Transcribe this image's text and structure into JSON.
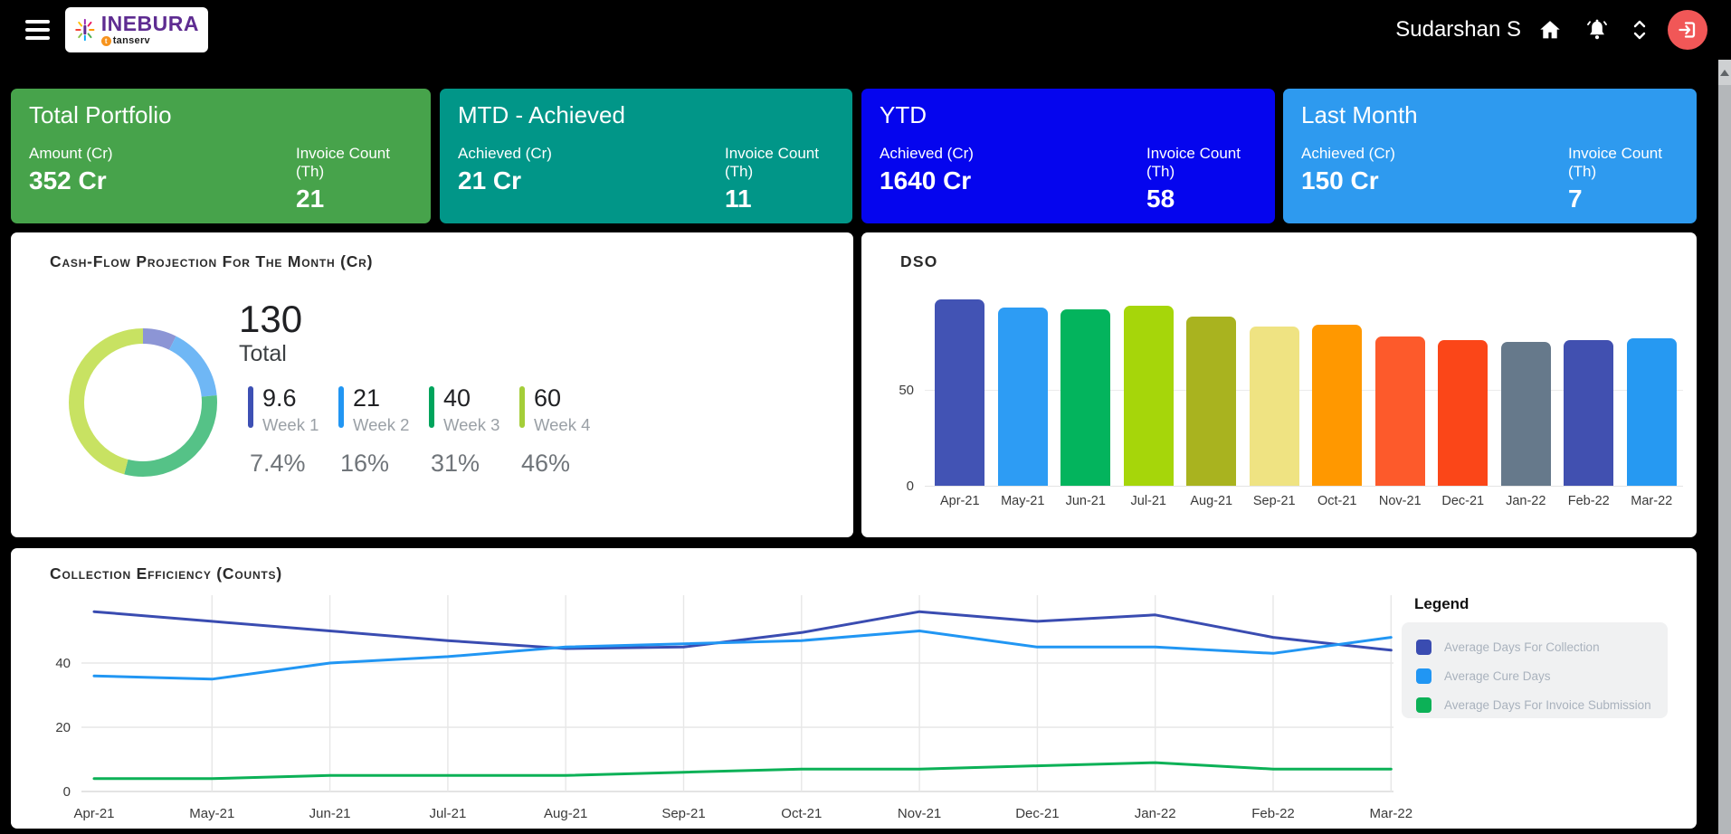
{
  "header": {
    "brand": "INEBURA",
    "brand_sub": "tanserv",
    "user_name": "Sudarshan S"
  },
  "kpi_cards": [
    {
      "title": "Total Portfolio",
      "color": "#47A34B",
      "metrics": [
        {
          "label": "Amount (Cr)",
          "value": "352 Cr"
        },
        {
          "label": "Invoice Count (Th)",
          "value": "21"
        }
      ]
    },
    {
      "title": "MTD - Achieved",
      "color": "#019688",
      "metrics": [
        {
          "label": "Achieved (Cr)",
          "value": "21 Cr"
        },
        {
          "label": "Invoice Count (Th)",
          "value": "11"
        }
      ]
    },
    {
      "title": "YTD",
      "color": "#0505EE",
      "metrics": [
        {
          "label": "Achieved (Cr)",
          "value": "1640 Cr"
        },
        {
          "label": "Invoice Count (Th)",
          "value": "58"
        }
      ]
    },
    {
      "title": "Last Month",
      "color": "#2E9AEF",
      "metrics": [
        {
          "label": "Achieved (Cr)",
          "value": "150 Cr"
        },
        {
          "label": "Invoice Count (Th)",
          "value": "7"
        }
      ]
    }
  ],
  "cashflow": {
    "title": "Cash-Flow Projection For The Month (Cr)",
    "total_value": "130",
    "total_label": "Total",
    "chart_data": {
      "type": "pie",
      "labels": [
        "Week 1",
        "Week 2",
        "Week 3",
        "Week 4"
      ],
      "values": [
        9.6,
        21,
        40,
        60
      ],
      "percentages": [
        "7.4%",
        "16%",
        "31%",
        "46%"
      ],
      "total": 130,
      "arc_colors": [
        "#8C95D5",
        "#6FB7F5",
        "#55C287",
        "#C8E262"
      ],
      "marker_colors": [
        "#3D50B4",
        "#2196F3",
        "#00A45C",
        "#A4CE39"
      ]
    }
  },
  "dso": {
    "title": "DSO",
    "chart_data": {
      "type": "bar",
      "categories": [
        "Apr-21",
        "May-21",
        "Jun-21",
        "Jul-21",
        "Aug-21",
        "Sep-21",
        "Oct-21",
        "Nov-21",
        "Dec-21",
        "Jan-22",
        "Feb-22",
        "Mar-22"
      ],
      "values": [
        97,
        93,
        92,
        94,
        88,
        83,
        84,
        78,
        76,
        75,
        76,
        77
      ],
      "colors": [
        "#4253B4",
        "#2D9CF4",
        "#03B45D",
        "#A6D60A",
        "#A9B31F",
        "#EFE382",
        "#FF9800",
        "#FD5A2B",
        "#FB4618",
        "#66798B",
        "#4150B0",
        "#2699F2"
      ],
      "yticks": [
        0,
        50
      ],
      "ylim": [
        0,
        104
      ],
      "grid": "horizontal"
    }
  },
  "collection": {
    "title": "Collection Efficiency (Counts)",
    "legend_title": "Legend",
    "chart_data": {
      "type": "line",
      "x": [
        "Apr-21",
        "May-21",
        "Jun-21",
        "Jul-21",
        "Aug-21",
        "Sep-21",
        "Oct-21",
        "Nov-21",
        "Dec-21",
        "Jan-22",
        "Feb-22",
        "Mar-22"
      ],
      "yticks": [
        0,
        20,
        40
      ],
      "ylim": [
        0,
        62
      ],
      "grid": "on",
      "legend_position": "right",
      "series": [
        {
          "name": "Average Days For Collection",
          "color": "#3A4CB1",
          "values": [
            56,
            53,
            50,
            47,
            44.5,
            45,
            49.5,
            56,
            53,
            55,
            48,
            44
          ]
        },
        {
          "name": "Average Cure Days",
          "color": "#2196F3",
          "values": [
            36,
            35,
            40,
            42,
            45,
            46,
            47,
            50,
            45,
            45,
            43,
            48
          ]
        },
        {
          "name": "Average Days For Invoice Submission",
          "color": "#0CB157",
          "values": [
            4,
            4,
            5,
            5,
            5,
            6,
            7,
            7,
            8,
            9,
            7,
            7
          ]
        }
      ]
    }
  }
}
